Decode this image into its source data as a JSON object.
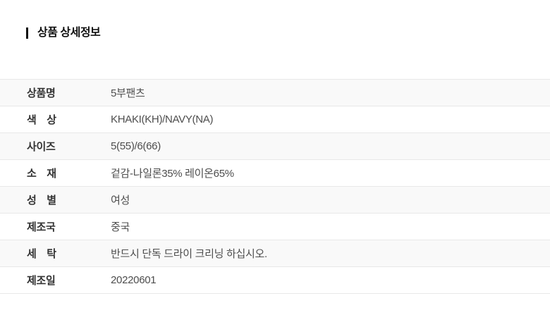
{
  "page": {
    "background_color": "#ffffff"
  },
  "header": {
    "title": "상품 상세정보",
    "accent_bar_color": "#111111"
  },
  "table": {
    "alt_row_background": "#f9f9f9",
    "border_color": "#e8e8e8",
    "rows": [
      {
        "label": "상품명",
        "value": "5부팬츠"
      },
      {
        "label": "색　상",
        "value": "KHAKI(KH)/NAVY(NA)"
      },
      {
        "label": "사이즈",
        "value": "5(55)/6(66)"
      },
      {
        "label": "소　재",
        "value": "겉감-나일론35% 레이온65%"
      },
      {
        "label": "성　별",
        "value": "여성"
      },
      {
        "label": "제조국",
        "value": "중국"
      },
      {
        "label": "세　탁",
        "value": "반드시 단독 드라이 크리닝 하십시오."
      },
      {
        "label": "제조일",
        "value": "20220601"
      }
    ]
  }
}
